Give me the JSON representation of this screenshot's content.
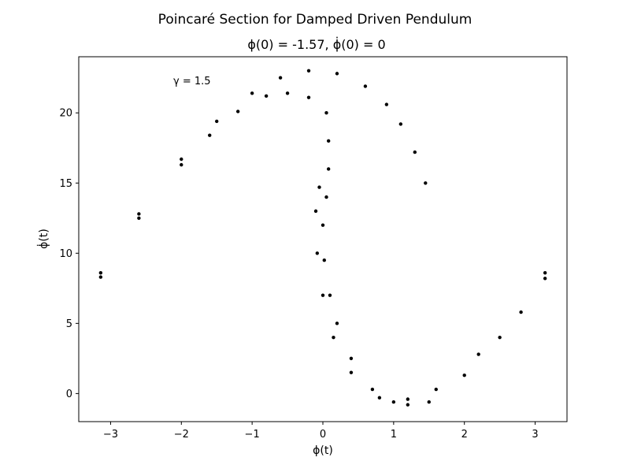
{
  "chart_data": {
    "type": "scatter",
    "title": "Poincaré Section for Damped Driven Pendulum",
    "subtitle": "ϕ(0) = -1.57, ϕ̇(0) = 0",
    "xlabel": "ϕ(t)",
    "ylabel": "ϕ̇(t)",
    "annotation": "γ = 1.5",
    "xlim": [
      -3.45,
      3.45
    ],
    "ylim": [
      -2.0,
      24.0
    ],
    "xticks": [
      -3,
      -2,
      -1,
      0,
      1,
      2,
      3
    ],
    "xtick_labels": [
      "−3",
      "−2",
      "−1",
      "0",
      "1",
      "2",
      "3"
    ],
    "yticks": [
      0,
      5,
      10,
      15,
      20
    ],
    "ytick_labels": [
      "0",
      "5",
      "10",
      "15",
      "20"
    ],
    "grid": false,
    "marker_color": "#000000",
    "series": [
      {
        "values": [
          {
            "x": -3.14,
            "y": 8.3
          },
          {
            "x": -2.6,
            "y": 12.5
          },
          {
            "x": -2.0,
            "y": 16.3
          },
          {
            "x": -1.6,
            "y": 18.4
          },
          {
            "x": -1.2,
            "y": 20.1
          },
          {
            "x": -0.8,
            "y": 21.2
          },
          {
            "x": -0.5,
            "y": 21.4
          },
          {
            "x": -0.2,
            "y": 21.1
          },
          {
            "x": 0.05,
            "y": 20.0
          },
          {
            "x": 0.08,
            "y": 18.0
          },
          {
            "x": 0.08,
            "y": 16.0
          },
          {
            "x": 0.05,
            "y": 14.0
          },
          {
            "x": 0.0,
            "y": 12.0
          },
          {
            "x": 0.02,
            "y": 9.5
          },
          {
            "x": 0.1,
            "y": 7.0
          },
          {
            "x": 0.2,
            "y": 5.0
          },
          {
            "x": 0.4,
            "y": 2.5
          },
          {
            "x": 0.7,
            "y": 0.3
          },
          {
            "x": 1.0,
            "y": -0.6
          },
          {
            "x": 1.2,
            "y": -0.8
          },
          {
            "x": 1.5,
            "y": -0.6
          },
          {
            "x": 2.0,
            "y": 1.3
          },
          {
            "x": 2.5,
            "y": 4.0
          },
          {
            "x": 3.14,
            "y": 8.2
          }
        ]
      },
      {
        "values": [
          {
            "x": -3.14,
            "y": 8.6
          },
          {
            "x": -2.6,
            "y": 12.8
          },
          {
            "x": -2.0,
            "y": 16.7
          },
          {
            "x": -1.5,
            "y": 19.4
          },
          {
            "x": -1.0,
            "y": 21.4
          },
          {
            "x": -0.6,
            "y": 22.5
          },
          {
            "x": -0.2,
            "y": 23.0
          },
          {
            "x": 0.2,
            "y": 22.8
          },
          {
            "x": 0.6,
            "y": 21.9
          },
          {
            "x": 0.9,
            "y": 20.6
          },
          {
            "x": 1.1,
            "y": 19.2
          },
          {
            "x": 1.3,
            "y": 17.2
          },
          {
            "x": 1.45,
            "y": 15.0
          }
        ]
      },
      {
        "values": [
          {
            "x": -0.05,
            "y": 14.7
          },
          {
            "x": -0.1,
            "y": 13.0
          },
          {
            "x": -0.08,
            "y": 10.0
          },
          {
            "x": 0.0,
            "y": 7.0
          },
          {
            "x": 0.15,
            "y": 4.0
          },
          {
            "x": 0.4,
            "y": 1.5
          },
          {
            "x": 0.8,
            "y": -0.3
          },
          {
            "x": 1.2,
            "y": -0.4
          },
          {
            "x": 1.6,
            "y": 0.3
          },
          {
            "x": 2.2,
            "y": 2.8
          },
          {
            "x": 2.8,
            "y": 5.8
          },
          {
            "x": 3.14,
            "y": 8.6
          }
        ]
      }
    ]
  }
}
